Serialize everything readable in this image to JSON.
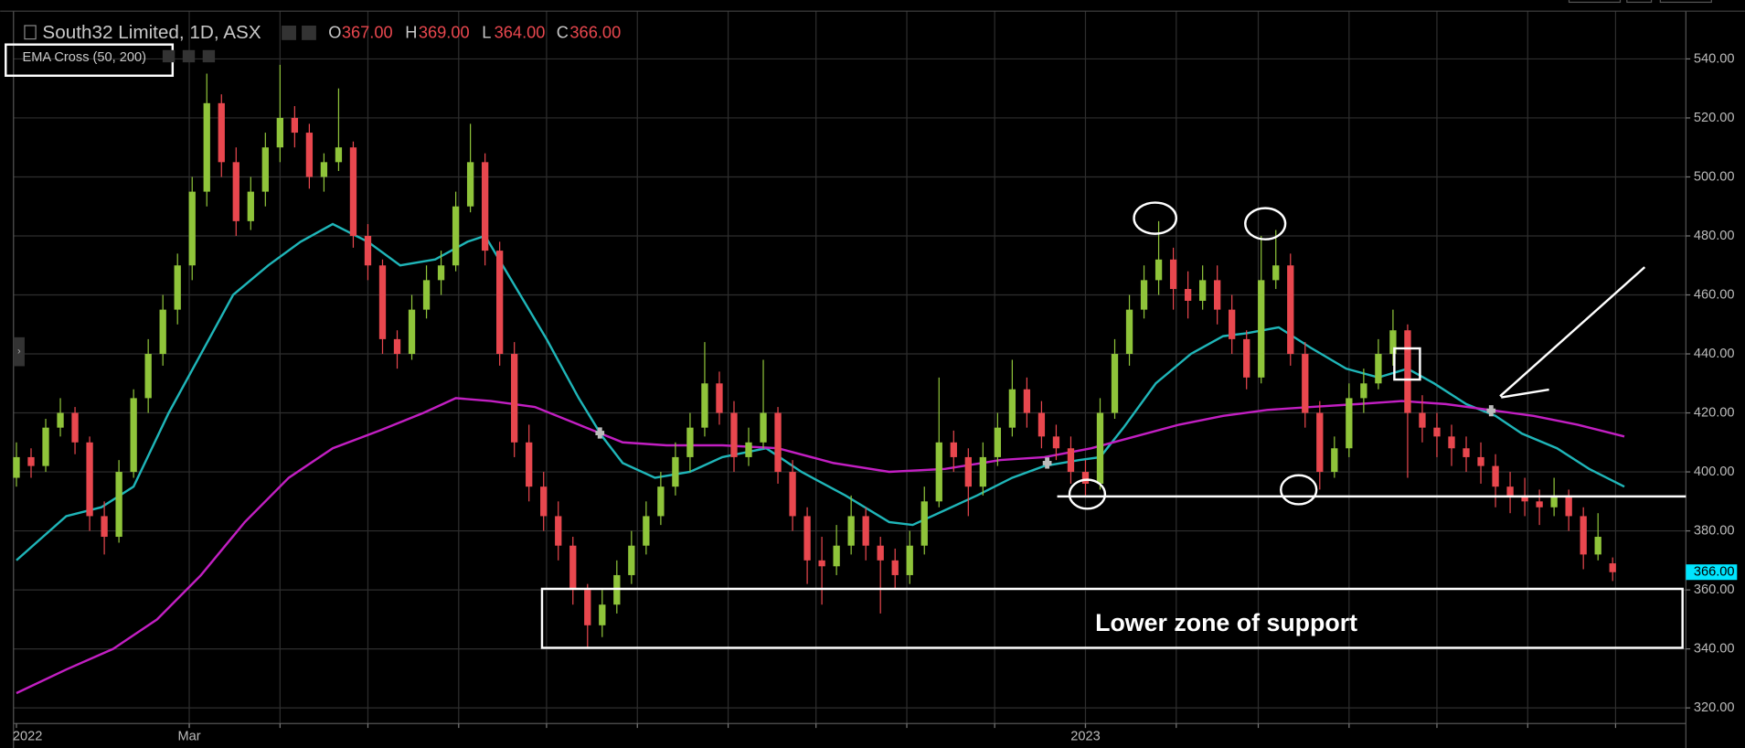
{
  "chart_data": {
    "type": "candlestick",
    "title": "South32 Limited, 1D, ASX",
    "ohlc": {
      "labels": [
        "O",
        "H",
        "L",
        "C"
      ],
      "values": [
        367,
        369,
        364,
        366
      ],
      "value_labels": [
        "367.00",
        "369.00",
        "364.00",
        "366.00"
      ]
    },
    "indicator": "EMA Cross (50, 200)",
    "annotation": "Lower zone of support",
    "last_price": 366,
    "last_price_label": "366.00",
    "last_price_color": "#00e5ff",
    "up_color": "#8fc43a",
    "down_color": "#e8474e",
    "xlim": [
      -1,
      570
    ],
    "xticks": [
      {
        "value": 0,
        "label": "2022"
      },
      {
        "value": 59,
        "label": "Mar"
      },
      {
        "value": 365,
        "label": "2023"
      }
    ],
    "xgrid": [
      59,
      90,
      120,
      151,
      181,
      212,
      243,
      273,
      304,
      334,
      365,
      396,
      424,
      455,
      485,
      516,
      546
    ],
    "ylim": [
      314.7,
      556.2
    ],
    "yticks": [
      {
        "value": 320,
        "label": "320.00"
      },
      {
        "value": 340,
        "label": "340.00"
      },
      {
        "value": 360,
        "label": "360.00"
      },
      {
        "value": 380,
        "label": "380.00"
      },
      {
        "value": 400,
        "label": "400.00"
      },
      {
        "value": 420,
        "label": "420.00"
      },
      {
        "value": 440,
        "label": "440.00"
      },
      {
        "value": 460,
        "label": "460.00"
      },
      {
        "value": 480,
        "label": "480.00"
      },
      {
        "value": 500,
        "label": "500.00"
      },
      {
        "value": 520,
        "label": "520.00"
      },
      {
        "value": 540,
        "label": "540.00"
      }
    ],
    "grid": true,
    "candles": [
      [
        0,
        398,
        410,
        395,
        405
      ],
      [
        5,
        405,
        408,
        398,
        402
      ],
      [
        10,
        402,
        418,
        400,
        415
      ],
      [
        15,
        415,
        425,
        412,
        420
      ],
      [
        20,
        420,
        422,
        406,
        410
      ],
      [
        25,
        410,
        412,
        380,
        385
      ],
      [
        30,
        385,
        390,
        372,
        378
      ],
      [
        35,
        378,
        404,
        376,
        400
      ],
      [
        40,
        400,
        428,
        398,
        425
      ],
      [
        45,
        425,
        445,
        420,
        440
      ],
      [
        50,
        440,
        460,
        436,
        455
      ],
      [
        55,
        455,
        474,
        450,
        470
      ],
      [
        60,
        470,
        500,
        465,
        495
      ],
      [
        65,
        495,
        535,
        490,
        525
      ],
      [
        70,
        525,
        528,
        500,
        505
      ],
      [
        75,
        505,
        510,
        480,
        485
      ],
      [
        80,
        485,
        500,
        482,
        495
      ],
      [
        85,
        495,
        515,
        490,
        510
      ],
      [
        90,
        510,
        538,
        505,
        520
      ],
      [
        95,
        520,
        524,
        510,
        515
      ],
      [
        100,
        515,
        518,
        496,
        500
      ],
      [
        105,
        500,
        508,
        495,
        505
      ],
      [
        110,
        505,
        530,
        502,
        510
      ],
      [
        115,
        510,
        512,
        476,
        480
      ],
      [
        120,
        480,
        484,
        465,
        470
      ],
      [
        125,
        470,
        472,
        440,
        445
      ],
      [
        130,
        445,
        448,
        435,
        440
      ],
      [
        135,
        440,
        460,
        438,
        455
      ],
      [
        140,
        455,
        470,
        452,
        465
      ],
      [
        145,
        465,
        475,
        460,
        470
      ],
      [
        150,
        470,
        495,
        468,
        490
      ],
      [
        155,
        490,
        518,
        488,
        505
      ],
      [
        160,
        505,
        508,
        470,
        475
      ],
      [
        165,
        475,
        478,
        436,
        440
      ],
      [
        170,
        440,
        444,
        405,
        410
      ],
      [
        175,
        410,
        416,
        390,
        395
      ],
      [
        180,
        395,
        400,
        380,
        385
      ],
      [
        185,
        385,
        390,
        370,
        375
      ],
      [
        190,
        375,
        378,
        355,
        360
      ],
      [
        195,
        360,
        362,
        340,
        348
      ],
      [
        200,
        348,
        360,
        344,
        355
      ],
      [
        205,
        355,
        370,
        352,
        365
      ],
      [
        210,
        365,
        380,
        362,
        375
      ],
      [
        215,
        375,
        390,
        372,
        385
      ],
      [
        220,
        385,
        400,
        382,
        395
      ],
      [
        225,
        395,
        410,
        392,
        405
      ],
      [
        230,
        405,
        420,
        400,
        415
      ],
      [
        235,
        415,
        444,
        412,
        430
      ],
      [
        240,
        430,
        434,
        416,
        420
      ],
      [
        245,
        420,
        424,
        400,
        405
      ],
      [
        250,
        405,
        415,
        402,
        410
      ],
      [
        255,
        410,
        438,
        408,
        420
      ],
      [
        260,
        420,
        422,
        396,
        400
      ],
      [
        265,
        400,
        404,
        380,
        385
      ],
      [
        270,
        385,
        388,
        362,
        370
      ],
      [
        275,
        370,
        378,
        355,
        368
      ],
      [
        280,
        368,
        382,
        365,
        375
      ],
      [
        285,
        375,
        392,
        372,
        385
      ],
      [
        290,
        385,
        388,
        370,
        375
      ],
      [
        295,
        375,
        378,
        352,
        370
      ],
      [
        300,
        370,
        374,
        360,
        365
      ],
      [
        305,
        365,
        380,
        362,
        375
      ],
      [
        310,
        375,
        395,
        372,
        390
      ],
      [
        315,
        390,
        432,
        388,
        410
      ],
      [
        320,
        410,
        414,
        400,
        405
      ],
      [
        325,
        405,
        408,
        385,
        395
      ],
      [
        330,
        395,
        410,
        392,
        405
      ],
      [
        335,
        405,
        420,
        402,
        415
      ],
      [
        340,
        415,
        438,
        412,
        428
      ],
      [
        345,
        428,
        432,
        415,
        420
      ],
      [
        350,
        420,
        424,
        408,
        412
      ],
      [
        355,
        412,
        416,
        404,
        408
      ],
      [
        360,
        408,
        412,
        396,
        400
      ],
      [
        365,
        400,
        404,
        392,
        396
      ],
      [
        370,
        396,
        425,
        394,
        420
      ],
      [
        375,
        420,
        445,
        418,
        440
      ],
      [
        380,
        440,
        460,
        436,
        455
      ],
      [
        385,
        455,
        470,
        452,
        465
      ],
      [
        390,
        465,
        485,
        460,
        472
      ],
      [
        395,
        472,
        476,
        455,
        462
      ],
      [
        400,
        462,
        468,
        452,
        458
      ],
      [
        405,
        458,
        470,
        455,
        465
      ],
      [
        410,
        465,
        470,
        450,
        455
      ],
      [
        415,
        455,
        460,
        440,
        445
      ],
      [
        420,
        445,
        448,
        428,
        432
      ],
      [
        425,
        432,
        480,
        430,
        465
      ],
      [
        430,
        465,
        482,
        462,
        470
      ],
      [
        435,
        470,
        474,
        436,
        440
      ],
      [
        440,
        440,
        444,
        415,
        420
      ],
      [
        445,
        420,
        424,
        394,
        400
      ],
      [
        450,
        400,
        412,
        398,
        408
      ],
      [
        455,
        408,
        430,
        405,
        425
      ],
      [
        460,
        425,
        435,
        420,
        430
      ],
      [
        465,
        430,
        445,
        428,
        440
      ],
      [
        470,
        440,
        455,
        436,
        448
      ],
      [
        475,
        448,
        450,
        398,
        420
      ],
      [
        480,
        420,
        426,
        410,
        415
      ],
      [
        485,
        415,
        420,
        405,
        412
      ],
      [
        490,
        412,
        416,
        402,
        408
      ],
      [
        495,
        408,
        412,
        400,
        405
      ],
      [
        500,
        405,
        410,
        396,
        402
      ],
      [
        505,
        402,
        406,
        388,
        395
      ],
      [
        510,
        395,
        400,
        386,
        392
      ],
      [
        515,
        392,
        398,
        385,
        390
      ],
      [
        520,
        390,
        394,
        382,
        388
      ],
      [
        525,
        388,
        398,
        385,
        392
      ],
      [
        530,
        392,
        394,
        380,
        385
      ],
      [
        535,
        385,
        388,
        367,
        372
      ],
      [
        540,
        372,
        386,
        370,
        378
      ],
      [
        545,
        369,
        371,
        363,
        366
      ]
    ],
    "lines": [
      {
        "color": "#1fb5b8",
        "x": [
          0,
          17,
          29,
          40,
          52,
          63,
          74,
          86,
          97,
          108,
          120,
          131,
          143,
          154,
          160,
          169,
          181,
          192,
          200,
          207,
          218,
          230,
          241,
          256,
          268,
          283,
          298,
          306,
          317,
          328,
          340,
          351,
          363,
          370,
          378,
          389,
          401,
          412,
          420,
          431,
          442,
          454,
          465,
          475,
          484,
          495,
          505,
          514,
          526,
          537,
          549
        ],
        "values": [
          370,
          385,
          388,
          395,
          420,
          440,
          460,
          470,
          478,
          484,
          478,
          470,
          472,
          478,
          480,
          465,
          445,
          425,
          412,
          403,
          398,
          400,
          405,
          408,
          400,
          392,
          383,
          382,
          387,
          392,
          398,
          402,
          404,
          405,
          415,
          430,
          440,
          446,
          447,
          449,
          442,
          435,
          432,
          435,
          430,
          423,
          419,
          413,
          408,
          401,
          395
        ]
      },
      {
        "color": "#c21fc2",
        "x": [
          0,
          17,
          33,
          48,
          63,
          78,
          93,
          108,
          124,
          139,
          150,
          162,
          177,
          192,
          207,
          222,
          241,
          260,
          279,
          298,
          317,
          336,
          351,
          367,
          382,
          397,
          412,
          427,
          442,
          458,
          473,
          488,
          503,
          518,
          533,
          549
        ],
        "values": [
          325,
          333,
          340,
          350,
          365,
          383,
          398,
          408,
          414,
          420,
          425,
          424,
          422,
          416,
          410,
          409,
          409,
          408,
          403,
          400,
          401,
          404,
          405,
          408,
          412,
          416,
          419,
          421,
          422,
          423,
          424,
          423,
          421,
          419,
          416,
          412
        ]
      }
    ]
  }
}
